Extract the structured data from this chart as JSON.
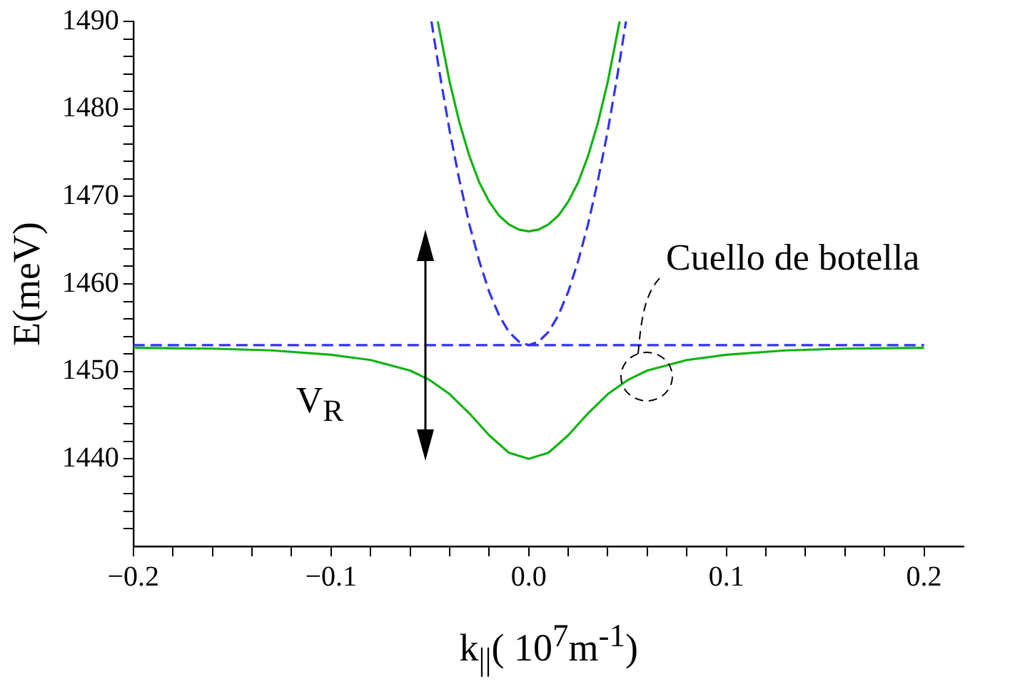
{
  "chart_data": {
    "type": "line",
    "xlabel": "k$_{||}$( 10$^{7}$m$^{-1}$)",
    "ylabel": "E(meV)",
    "xlim": [
      -0.2,
      0.22
    ],
    "ylim": [
      1430,
      1490
    ],
    "xticks": [
      {
        "value": -0.2,
        "label": "−0.2"
      },
      {
        "value": -0.18,
        "label": null
      },
      {
        "value": -0.16,
        "label": null
      },
      {
        "value": -0.14,
        "label": null
      },
      {
        "value": -0.12,
        "label": null
      },
      {
        "value": -0.1,
        "label": "−0.1"
      },
      {
        "value": -0.08,
        "label": null
      },
      {
        "value": -0.06,
        "label": null
      },
      {
        "value": -0.04,
        "label": null
      },
      {
        "value": -0.02,
        "label": null
      },
      {
        "value": 0,
        "label": "0.0"
      },
      {
        "value": 0.02,
        "label": null
      },
      {
        "value": 0.04,
        "label": null
      },
      {
        "value": 0.06,
        "label": null
      },
      {
        "value": 0.08,
        "label": null
      },
      0.1,
      {
        "value": 0.12,
        "label": null
      },
      {
        "value": 0.14,
        "label": null
      },
      {
        "value": 0.16,
        "label": null
      },
      {
        "value": 0.18,
        "label": null
      },
      0.2
    ],
    "yticks": [
      {
        "value": 1432,
        "label": null
      },
      {
        "value": 1434,
        "label": null
      },
      {
        "value": 1436,
        "label": null
      },
      {
        "value": 1438,
        "label": null
      },
      1440,
      {
        "value": 1442,
        "label": null
      },
      {
        "value": 1444,
        "label": null
      },
      {
        "value": 1446,
        "label": null
      },
      {
        "value": 1448,
        "label": null
      },
      1450,
      {
        "value": 1452,
        "label": null
      },
      {
        "value": 1454,
        "label": null
      },
      {
        "value": 1456,
        "label": null
      },
      {
        "value": 1458,
        "label": null
      },
      1460,
      {
        "value": 1462,
        "label": null
      },
      {
        "value": 1464,
        "label": null
      },
      {
        "value": 1466,
        "label": null
      },
      {
        "value": 1468,
        "label": null
      },
      1470,
      {
        "value": 1472,
        "label": null
      },
      {
        "value": 1474,
        "label": null
      },
      {
        "value": 1476,
        "label": null
      },
      {
        "value": 1478,
        "label": null
      },
      1480,
      {
        "value": 1482,
        "label": null
      },
      {
        "value": 1484,
        "label": null
      },
      {
        "value": 1486,
        "label": null
      },
      {
        "value": 1488,
        "label": null
      },
      1490
    ],
    "grid": false,
    "legend": false,
    "marker": "none",
    "series": [
      {
        "color": "#3333ee",
        "line_style": "dashed",
        "x": [
          -0.2,
          0.2
        ],
        "values": [
          1453,
          1453
        ]
      },
      {
        "color": "#3333ee",
        "line_style": "dashed",
        "x": [
          -0.0492,
          -0.045,
          -0.04,
          -0.035,
          -0.03,
          -0.025,
          -0.02,
          -0.015,
          -0.01,
          -0.005,
          0,
          0.005,
          0.01,
          0.015,
          0.02,
          0.025,
          0.03,
          0.035,
          0.04,
          0.045,
          0.0492
        ],
        "values": [
          1490.0,
          1484.0,
          1477.5,
          1471.8,
          1466.8,
          1462.6,
          1459.1,
          1456.4,
          1454.5,
          1453.4,
          1453,
          1453.4,
          1454.5,
          1456.4,
          1459.1,
          1462.6,
          1466.8,
          1471.8,
          1477.5,
          1484.0,
          1490.0
        ]
      },
      {
        "color": "#11b311",
        "line_style": "solid",
        "x": [
          -0.046,
          -0.04,
          -0.035,
          -0.03,
          -0.025,
          -0.02,
          -0.015,
          -0.01,
          -0.005,
          0,
          0.005,
          0.01,
          0.015,
          0.02,
          0.025,
          0.03,
          0.035,
          0.04,
          0.046
        ],
        "values": [
          1490.0,
          1483.1,
          1478.4,
          1474.6,
          1471.6,
          1469.4,
          1467.8,
          1466.8,
          1466.2,
          1466,
          1466.2,
          1466.8,
          1467.8,
          1469.4,
          1471.6,
          1474.6,
          1478.4,
          1483.1,
          1490.0
        ]
      },
      {
        "color": "#11b311",
        "line_style": "solid",
        "x": [
          -0.2,
          -0.16,
          -0.13,
          -0.1,
          -0.08,
          -0.06,
          -0.05,
          -0.04,
          -0.03,
          -0.02,
          -0.01,
          0,
          0.01,
          0.02,
          0.03,
          0.04,
          0.05,
          0.06,
          0.08,
          0.1,
          0.13,
          0.16,
          0.2
        ],
        "values": [
          1452.7,
          1452.6,
          1452.4,
          1451.9,
          1451.3,
          1450.1,
          1449.0,
          1447.4,
          1445.2,
          1442.7,
          1440.7,
          1440,
          1440.7,
          1442.7,
          1445.2,
          1447.4,
          1449.0,
          1450.1,
          1451.3,
          1451.9,
          1452.4,
          1452.6,
          1452.7
        ]
      }
    ],
    "annotations": [
      {
        "text": "V$_{R}$",
        "x": -0.052,
        "y": 1453
      },
      {
        "text": "Cuello de botella",
        "x": 0.055,
        "y": 1449
      }
    ]
  }
}
